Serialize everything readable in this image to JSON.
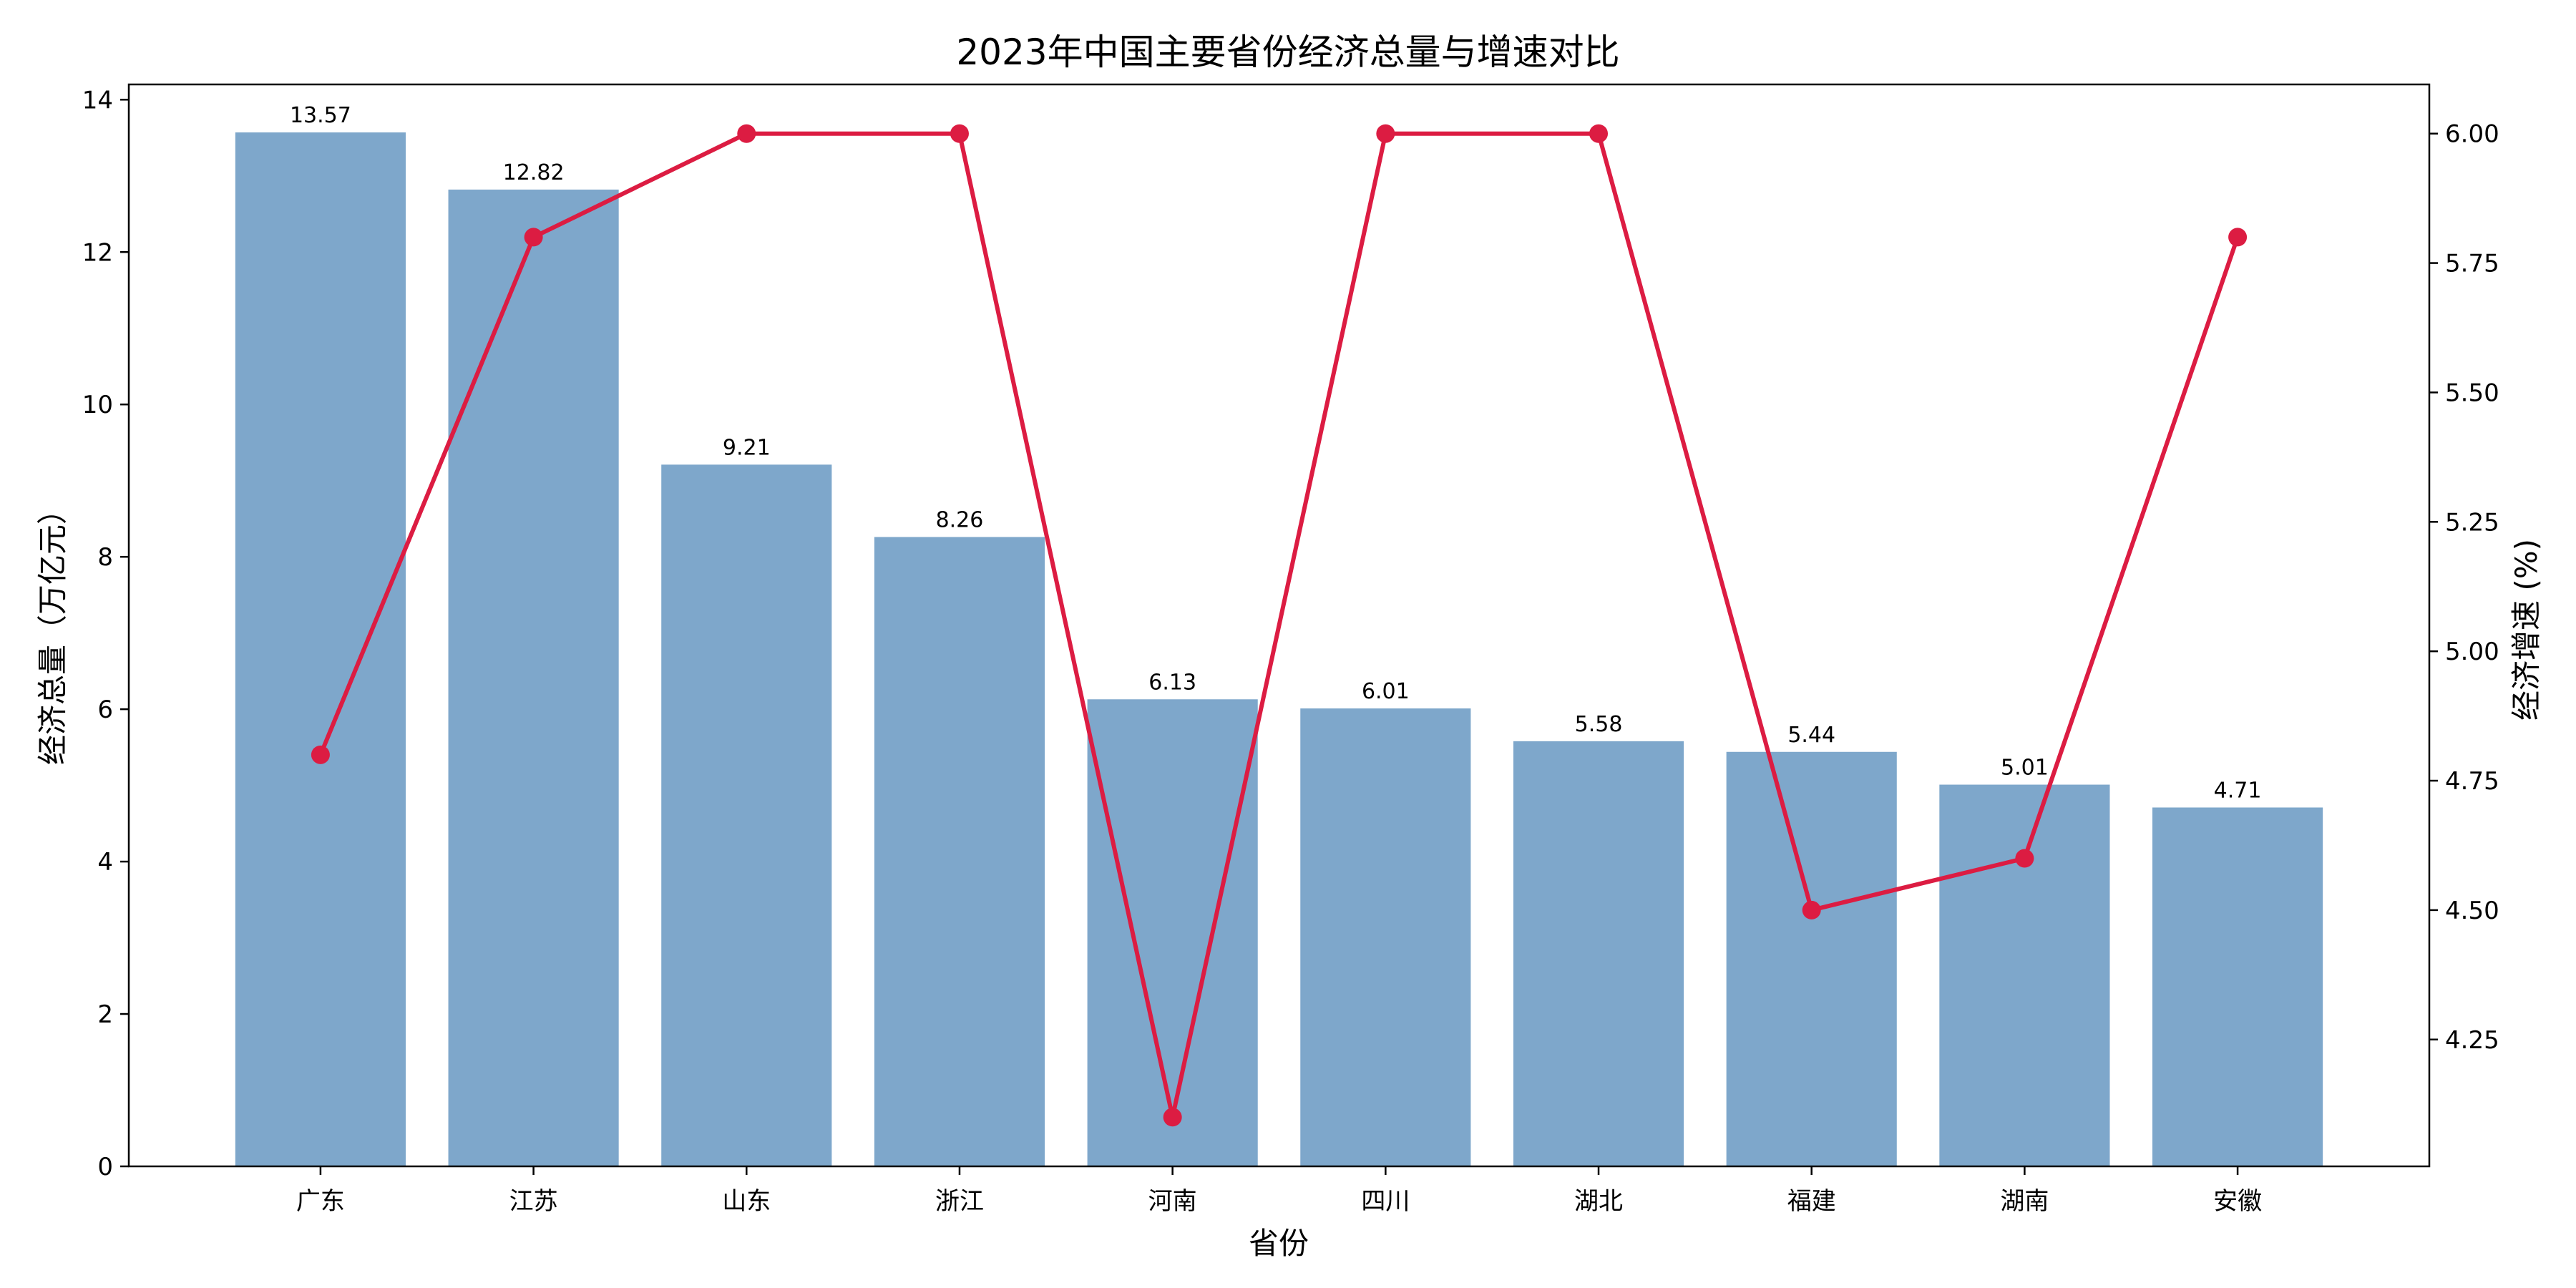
{
  "chart_data": {
    "type": "bar",
    "title": "2023年中国主要省份经济总量与增速对比",
    "xlabel": "省份",
    "ylabel": "经济总量（万亿元）",
    "y2label": "经济增速 (%)",
    "categories": [
      "广东",
      "江苏",
      "山东",
      "浙江",
      "河南",
      "四川",
      "湖北",
      "福建",
      "湖南",
      "安徽"
    ],
    "series": [
      {
        "type": "bar",
        "axis": "left",
        "color": "#7ea7cb",
        "values": [
          13.57,
          12.82,
          9.21,
          8.26,
          6.13,
          6.01,
          5.58,
          5.44,
          5.01,
          4.71
        ],
        "labels": [
          "13.57",
          "12.82",
          "9.21",
          "8.26",
          "6.13",
          "6.01",
          "5.58",
          "5.44",
          "5.01",
          "4.71"
        ]
      },
      {
        "type": "line",
        "axis": "right",
        "color": "#dc1c42",
        "marker": "circle",
        "values": [
          4.8,
          5.8,
          6.0,
          6.0,
          4.1,
          6.0,
          6.0,
          4.5,
          4.6,
          5.8
        ]
      }
    ],
    "ylim": [
      0,
      14.2
    ],
    "yticks": [
      0,
      2,
      4,
      6,
      8,
      10,
      12,
      14
    ],
    "ytick_labels": [
      "0",
      "2",
      "4",
      "6",
      "8",
      "10",
      "12",
      "14"
    ],
    "y2lim": [
      4.005,
      6.095
    ],
    "y2ticks": [
      4.25,
      4.5,
      4.75,
      5.0,
      5.25,
      5.5,
      5.75,
      6.0
    ],
    "y2tick_labels": [
      "4.25",
      "4.50",
      "4.75",
      "5.00",
      "5.25",
      "5.50",
      "5.75",
      "6.00"
    ],
    "grid": false,
    "legend": "none"
  }
}
